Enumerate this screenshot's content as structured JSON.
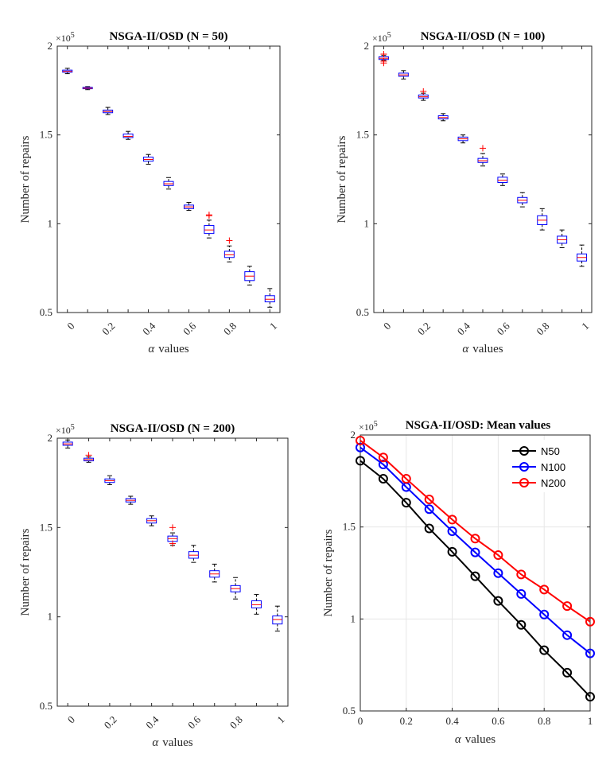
{
  "chart_data": [
    {
      "type": "box",
      "title": "NSGA-II/OSD (N = 50)",
      "xlabel_symbol": "α",
      "xlabel_text": "values",
      "ylabel": "Number of repairs",
      "y_multiplier": "×10",
      "y_multiplier_exp": "5",
      "ylim": [
        0.5,
        2.0
      ],
      "yticks": [
        0.5,
        1,
        1.5,
        2
      ],
      "ytick_labels": [
        "0.5",
        "1",
        "1.5",
        "2"
      ],
      "categories": [
        "0",
        "0.1",
        "0.2",
        "0.3",
        "0.4",
        "0.5",
        "0.6",
        "0.7",
        "0.8",
        "0.9",
        "1"
      ],
      "xtick_labels": [
        "0",
        "",
        "0.2",
        "",
        "0.4",
        "",
        "0.6",
        "",
        "0.8",
        "",
        "1"
      ],
      "boxes": [
        {
          "min": 1.845,
          "q1": 1.853,
          "median": 1.858,
          "q3": 1.865,
          "max": 1.875,
          "outliers": []
        },
        {
          "min": 1.755,
          "q1": 1.76,
          "median": 1.763,
          "q3": 1.768,
          "max": 1.772,
          "outliers": []
        },
        {
          "min": 1.615,
          "q1": 1.625,
          "median": 1.632,
          "q3": 1.64,
          "max": 1.655,
          "outliers": []
        },
        {
          "min": 1.475,
          "q1": 1.485,
          "median": 1.492,
          "q3": 1.505,
          "max": 1.52,
          "outliers": []
        },
        {
          "min": 1.335,
          "q1": 1.352,
          "median": 1.362,
          "q3": 1.375,
          "max": 1.39,
          "outliers": []
        },
        {
          "min": 1.195,
          "q1": 1.215,
          "median": 1.225,
          "q3": 1.238,
          "max": 1.26,
          "outliers": []
        },
        {
          "min": 1.075,
          "q1": 1.085,
          "median": 1.095,
          "q3": 1.105,
          "max": 1.12,
          "outliers": []
        },
        {
          "min": 0.92,
          "q1": 0.945,
          "median": 0.965,
          "q3": 0.99,
          "max": 1.02,
          "outliers": [
            1.045,
            1.05
          ]
        },
        {
          "min": 0.785,
          "q1": 0.81,
          "median": 0.825,
          "q3": 0.845,
          "max": 0.875,
          "outliers": [
            0.905
          ]
        },
        {
          "min": 0.655,
          "q1": 0.68,
          "median": 0.705,
          "q3": 0.73,
          "max": 0.76,
          "outliers": []
        },
        {
          "min": 0.53,
          "q1": 0.56,
          "median": 0.575,
          "q3": 0.595,
          "max": 0.635,
          "outliers": []
        }
      ]
    },
    {
      "type": "box",
      "title": "NSGA-II/OSD (N = 100)",
      "xlabel_symbol": "α",
      "xlabel_text": "values",
      "ylabel": "Number of repairs",
      "y_multiplier": "×10",
      "y_multiplier_exp": "5",
      "ylim": [
        0.5,
        2.0
      ],
      "yticks": [
        0.5,
        1,
        1.5,
        2
      ],
      "ytick_labels": [
        "0.5",
        "1",
        "1.5",
        "2"
      ],
      "categories": [
        "0",
        "0.1",
        "0.2",
        "0.3",
        "0.4",
        "0.5",
        "0.6",
        "0.7",
        "0.8",
        "0.9",
        "1"
      ],
      "xtick_labels": [
        "0",
        "",
        "0.2",
        "",
        "0.4",
        "",
        "0.6",
        "",
        "0.8",
        "",
        "1"
      ],
      "boxes": [
        {
          "min": 1.92,
          "q1": 1.925,
          "median": 1.932,
          "q3": 1.94,
          "max": 1.948,
          "outliers": [
            1.905,
            1.915,
            1.955
          ]
        },
        {
          "min": 1.815,
          "q1": 1.83,
          "median": 1.838,
          "q3": 1.848,
          "max": 1.862,
          "outliers": []
        },
        {
          "min": 1.695,
          "q1": 1.708,
          "median": 1.715,
          "q3": 1.725,
          "max": 1.735,
          "outliers": [
            1.745
          ]
        },
        {
          "min": 1.58,
          "q1": 1.59,
          "median": 1.598,
          "q3": 1.608,
          "max": 1.62,
          "outliers": []
        },
        {
          "min": 1.455,
          "q1": 1.468,
          "median": 1.478,
          "q3": 1.488,
          "max": 1.5,
          "outliers": []
        },
        {
          "min": 1.325,
          "q1": 1.345,
          "median": 1.355,
          "q3": 1.368,
          "max": 1.395,
          "outliers": [
            1.425
          ]
        },
        {
          "min": 1.215,
          "q1": 1.232,
          "median": 1.245,
          "q3": 1.262,
          "max": 1.28,
          "outliers": []
        },
        {
          "min": 1.095,
          "q1": 1.118,
          "median": 1.132,
          "q3": 1.148,
          "max": 1.175,
          "outliers": []
        },
        {
          "min": 0.965,
          "q1": 0.995,
          "median": 1.02,
          "q3": 1.045,
          "max": 1.085,
          "outliers": []
        },
        {
          "min": 0.865,
          "q1": 0.89,
          "median": 0.91,
          "q3": 0.93,
          "max": 0.965,
          "outliers": []
        },
        {
          "min": 0.76,
          "q1": 0.79,
          "median": 0.81,
          "q3": 0.83,
          "max": 0.88,
          "outliers": []
        }
      ]
    },
    {
      "type": "box",
      "title": "NSGA-II/OSD (N = 200)",
      "xlabel_symbol": "α",
      "xlabel_text": "values",
      "ylabel": "Number of repairs",
      "y_multiplier": "×10",
      "y_multiplier_exp": "5",
      "ylim": [
        0.5,
        2.0
      ],
      "yticks": [
        0.5,
        1,
        1.5,
        2
      ],
      "ytick_labels": [
        "0.5",
        "1",
        "1.5",
        "2"
      ],
      "categories": [
        "0",
        "0.1",
        "0.2",
        "0.3",
        "0.4",
        "0.5",
        "0.6",
        "0.7",
        "0.8",
        "0.9",
        "1"
      ],
      "xtick_labels": [
        "0",
        "",
        "0.2",
        "",
        "0.4",
        "",
        "0.6",
        "",
        "0.8",
        "",
        "1"
      ],
      "boxes": [
        {
          "min": 1.945,
          "q1": 1.96,
          "median": 1.968,
          "q3": 1.978,
          "max": 1.99,
          "outliers": []
        },
        {
          "min": 1.865,
          "q1": 1.873,
          "median": 1.88,
          "q3": 1.888,
          "max": 1.895,
          "outliers": [
            1.905
          ]
        },
        {
          "min": 1.74,
          "q1": 1.752,
          "median": 1.762,
          "q3": 1.772,
          "max": 1.79,
          "outliers": []
        },
        {
          "min": 1.63,
          "q1": 1.643,
          "median": 1.652,
          "q3": 1.662,
          "max": 1.675,
          "outliers": []
        },
        {
          "min": 1.51,
          "q1": 1.525,
          "median": 1.538,
          "q3": 1.55,
          "max": 1.565,
          "outliers": []
        },
        {
          "min": 1.4,
          "q1": 1.422,
          "median": 1.438,
          "q3": 1.452,
          "max": 1.47,
          "outliers": [
            1.41,
            1.5
          ]
        },
        {
          "min": 1.305,
          "q1": 1.328,
          "median": 1.345,
          "q3": 1.365,
          "max": 1.4,
          "outliers": []
        },
        {
          "min": 1.195,
          "q1": 1.222,
          "median": 1.24,
          "q3": 1.258,
          "max": 1.295,
          "outliers": []
        },
        {
          "min": 1.1,
          "q1": 1.14,
          "median": 1.158,
          "q3": 1.175,
          "max": 1.22,
          "outliers": []
        },
        {
          "min": 1.015,
          "q1": 1.05,
          "median": 1.068,
          "q3": 1.09,
          "max": 1.125,
          "outliers": []
        },
        {
          "min": 0.92,
          "q1": 0.96,
          "median": 0.985,
          "q3": 1.005,
          "max": 1.06,
          "outliers": []
        }
      ]
    },
    {
      "type": "line",
      "title": "NSGA-II/OSD: Mean values",
      "xlabel_symbol": "α",
      "xlabel_text": "values",
      "ylabel": "Number of repairs",
      "y_multiplier": "×10",
      "y_multiplier_exp": "5",
      "grid": true,
      "xlim": [
        0,
        1
      ],
      "ylim": [
        0.5,
        2.0
      ],
      "xticks": [
        0,
        0.2,
        0.4,
        0.6,
        0.8,
        1
      ],
      "xtick_labels": [
        "0",
        "0.2",
        "0.4",
        "0.6",
        "0.8",
        "1"
      ],
      "yticks": [
        0.5,
        1,
        1.5,
        2
      ],
      "ytick_labels": [
        "0.5",
        "1",
        "1.5",
        "2"
      ],
      "legend_position": "top-right",
      "x": [
        0,
        0.1,
        0.2,
        0.3,
        0.4,
        0.5,
        0.6,
        0.7,
        0.8,
        0.9,
        1
      ],
      "series": [
        {
          "name": "N50",
          "color": "#000000",
          "values": [
            1.86,
            1.762,
            1.632,
            1.492,
            1.365,
            1.232,
            1.098,
            0.968,
            0.83,
            0.708,
            0.577
          ]
        },
        {
          "name": "N100",
          "color": "#0000ff",
          "values": [
            1.932,
            1.84,
            1.717,
            1.597,
            1.477,
            1.362,
            1.249,
            1.136,
            1.024,
            0.912,
            0.813
          ]
        },
        {
          "name": "N200",
          "color": "#ff0000",
          "values": [
            1.97,
            1.878,
            1.762,
            1.65,
            1.54,
            1.437,
            1.347,
            1.242,
            1.16,
            1.07,
            0.985
          ]
        }
      ]
    }
  ],
  "colors": {
    "box_edge": "#0000ff",
    "median": "#ff0000",
    "whisker": "#000000",
    "outlier": "#ff0000",
    "axis": "#262626",
    "grid": "#e6e6e6"
  }
}
